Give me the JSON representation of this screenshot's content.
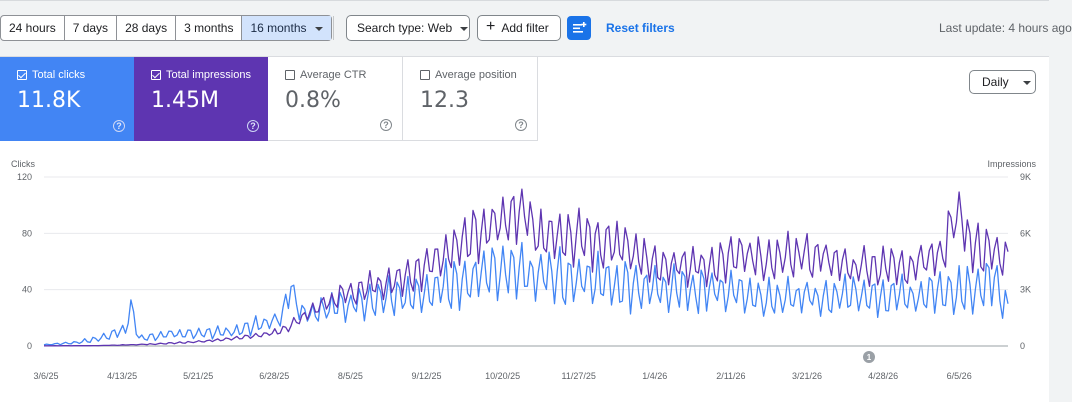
{
  "toolbar": {
    "ranges": [
      "24 hours",
      "7 days",
      "28 days",
      "3 months",
      "16 months"
    ],
    "selected_range": "16 months",
    "search_type": "Search type: Web",
    "add_filter": "Add filter",
    "reset_filters": "Reset filters",
    "last_update": "Last update: 4 hours ago"
  },
  "metrics": {
    "clicks": {
      "label": "Total clicks",
      "value": "11.8K",
      "checked": true
    },
    "impressions": {
      "label": "Total impressions",
      "value": "1.45M",
      "checked": true
    },
    "ctr": {
      "label": "Average CTR",
      "value": "0.8%",
      "checked": false
    },
    "position": {
      "label": "Average position",
      "value": "12.3",
      "checked": false
    }
  },
  "granularity": "Daily",
  "annotation_badge": "1",
  "colors": {
    "clicks": "#4285f4",
    "impressions": "#5e35b1",
    "accent": "#1a73e8",
    "selected_range_bg": "#d2e3fc"
  },
  "chart_data": {
    "type": "line",
    "xlabel": "",
    "left_axis": {
      "label": "Clicks",
      "ticks": [
        "0",
        "40",
        "80",
        "120"
      ],
      "range": [
        0,
        120
      ]
    },
    "right_axis": {
      "label": "Impressions",
      "ticks": [
        "0",
        "3K",
        "6K",
        "9K"
      ],
      "range": [
        0,
        9000
      ]
    },
    "x_ticks": [
      "3/6/25",
      "4/13/25",
      "5/21/25",
      "6/28/25",
      "8/5/25",
      "9/12/25",
      "10/20/25",
      "11/27/25",
      "1/4/26",
      "2/11/26",
      "3/21/26",
      "4/28/26",
      "6/5/26"
    ],
    "series": [
      {
        "name": "Total clicks",
        "axis": "left",
        "color": "#4285f4",
        "keypoints": [
          [
            0,
            1
          ],
          [
            20,
            2
          ],
          [
            40,
            5
          ],
          [
            60,
            12
          ],
          [
            64,
            28
          ],
          [
            70,
            6
          ],
          [
            100,
            9
          ],
          [
            140,
            10
          ],
          [
            175,
            20
          ],
          [
            182,
            40
          ],
          [
            190,
            22
          ],
          [
            230,
            30
          ],
          [
            270,
            36
          ],
          [
            310,
            45
          ],
          [
            345,
            55
          ],
          [
            365,
            48
          ],
          [
            400,
            48
          ],
          [
            430,
            42
          ],
          [
            460,
            40
          ],
          [
            500,
            38
          ],
          [
            530,
            35
          ],
          [
            560,
            34
          ],
          [
            600,
            36
          ],
          [
            640,
            34
          ],
          [
            680,
            40
          ],
          [
            700,
            44
          ],
          [
            710,
            24
          ]
        ]
      },
      {
        "name": "Total impressions",
        "axis": "right",
        "color": "#5e35b1",
        "keypoints": [
          [
            0,
            10
          ],
          [
            40,
            20
          ],
          [
            80,
            100
          ],
          [
            120,
            250
          ],
          [
            160,
            600
          ],
          [
            175,
            800
          ],
          [
            190,
            1500
          ],
          [
            210,
            2400
          ],
          [
            240,
            3100
          ],
          [
            270,
            3800
          ],
          [
            300,
            5000
          ],
          [
            330,
            6500
          ],
          [
            355,
            7200
          ],
          [
            365,
            5600
          ],
          [
            390,
            5700
          ],
          [
            420,
            5400
          ],
          [
            450,
            4300
          ],
          [
            480,
            4300
          ],
          [
            510,
            4700
          ],
          [
            540,
            4700
          ],
          [
            570,
            4800
          ],
          [
            600,
            4100
          ],
          [
            630,
            4200
          ],
          [
            660,
            4800
          ],
          [
            675,
            7500
          ],
          [
            680,
            5400
          ],
          [
            700,
            4800
          ],
          [
            710,
            4600
          ]
        ]
      }
    ]
  }
}
